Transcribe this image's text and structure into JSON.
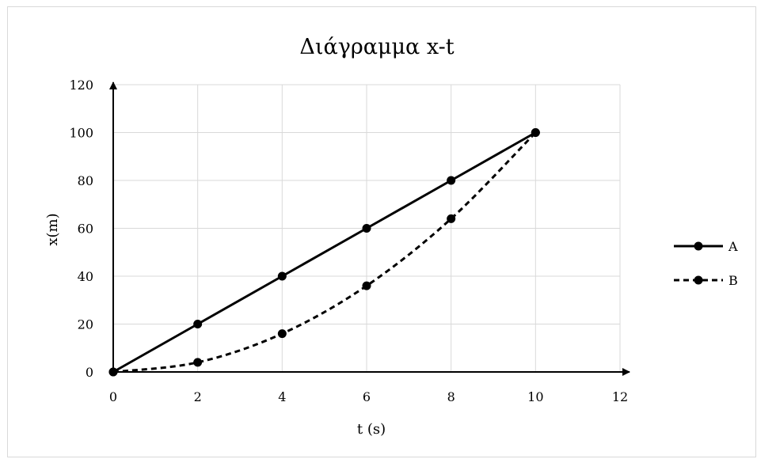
{
  "chart_data": {
    "type": "scatter",
    "title": "Διάγραμμα x-t",
    "xlabel": "t (s)",
    "ylabel": "x(m)",
    "xlim": [
      0,
      12
    ],
    "ylim": [
      0,
      120
    ],
    "x_ticks": [
      0,
      2,
      4,
      6,
      8,
      10,
      12
    ],
    "y_ticks": [
      0,
      20,
      40,
      60,
      80,
      100,
      120
    ],
    "grid": true,
    "legend_position": "right",
    "series": [
      {
        "name": "A",
        "line_style": "solid",
        "smooth": false,
        "color": "#000000",
        "x": [
          0,
          2,
          4,
          6,
          8,
          10
        ],
        "y": [
          0,
          20,
          40,
          60,
          80,
          100
        ]
      },
      {
        "name": "B",
        "line_style": "dashed",
        "smooth": true,
        "color": "#000000",
        "x": [
          0,
          2,
          4,
          6,
          8,
          10
        ],
        "y": [
          0,
          4,
          16,
          36,
          64,
          100
        ]
      }
    ]
  }
}
